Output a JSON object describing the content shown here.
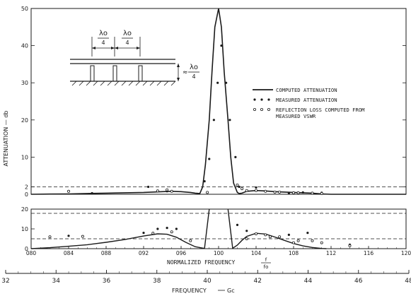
{
  "chart_data": [
    {
      "type": "line",
      "ylabel": "ATTENUATION — db",
      "ylim": [
        0,
        50
      ],
      "xlim": [
        0.8,
        1.2
      ],
      "yticks": [
        {
          "value": 0,
          "label": "0"
        },
        {
          "value": 2,
          "label": "2"
        },
        {
          "value": 10,
          "label": "10"
        },
        {
          "value": 20,
          "label": "20"
        },
        {
          "value": 30,
          "label": "30"
        },
        {
          "value": 40,
          "label": "40"
        },
        {
          "value": 50,
          "label": "50"
        }
      ],
      "reference_line_y": 2,
      "legend": {
        "placement": "right",
        "entries": [
          "COMPUTED ATTENUATION",
          "MEASURED ATTENUATION",
          "REFLECTION LOSS COMPUTED FROM MEASURED VSWR"
        ]
      },
      "inset": {
        "labels": [
          "λo/4",
          "λo/4",
          "≈ λo/4"
        ],
        "lambda": "λo",
        "four": "4",
        "approx": "≈"
      },
      "series": [
        {
          "name": "COMPUTED ATTENUATION",
          "style": "line",
          "x": [
            0.8,
            0.82,
            0.84,
            0.86,
            0.88,
            0.9,
            0.92,
            0.94,
            0.95,
            0.96,
            0.97,
            0.975,
            0.98,
            0.983,
            0.986,
            0.99,
            0.993,
            0.996,
            1.0,
            1.003,
            1.006,
            1.01,
            1.013,
            1.016,
            1.02,
            1.022,
            1.025,
            1.03,
            1.04,
            1.05,
            1.06,
            1.08,
            1.1,
            1.11,
            1.12,
            1.14,
            1.16,
            1.18,
            1.2
          ],
          "y": [
            0,
            0.05,
            0.1,
            0.2,
            0.3,
            0.4,
            0.5,
            0.7,
            0.8,
            0.7,
            0.5,
            0.3,
            0.2,
            2.0,
            8.0,
            20.0,
            33.0,
            45.0,
            50.0,
            45.0,
            33.0,
            20.0,
            10.0,
            3.0,
            0.5,
            0.2,
            0.3,
            0.8,
            1.0,
            0.9,
            0.7,
            0.5,
            0.3,
            0.1,
            0,
            0,
            0,
            0,
            0
          ]
        },
        {
          "name": "MEASURED ATTENUATION",
          "style": "points",
          "x": [
            0.865,
            0.925,
            0.945,
            0.985,
            0.99,
            0.995,
            0.999,
            1.003,
            1.008,
            1.012,
            1.018,
            1.022,
            1.04,
            1.075,
            1.09,
            1.11
          ],
          "y": [
            0.3,
            2.0,
            0.8,
            3.5,
            9.5,
            20.0,
            30.0,
            40.0,
            30.0,
            20.0,
            10.0,
            2.0,
            1.8,
            0.3,
            0.5,
            0.4
          ]
        },
        {
          "name": "REFLECTION LOSS COMPUTED FROM MEASURED VSWR",
          "style": "open-points",
          "x": [
            0.84,
            0.935,
            0.945,
            0.95,
            0.988,
            1.02,
            1.025,
            1.03,
            1.04,
            1.05,
            1.06,
            1.065,
            1.08,
            1.085,
            1.1,
            1.11
          ],
          "y": [
            0.8,
            0.9,
            1.2,
            0.8,
            0.5,
            2.5,
            1.5,
            1.0,
            1.0,
            0.8,
            0.6,
            0.6,
            0.4,
            0.4,
            0.3,
            0.2
          ]
        }
      ]
    },
    {
      "type": "line",
      "ylim": [
        0,
        20
      ],
      "xlim": [
        0.8,
        1.2
      ],
      "xlabel": "NORMALIZED FREQUENCY",
      "xlabel_fraction": {
        "num": "f",
        "den": "fo"
      },
      "yticks": [
        {
          "value": 0,
          "label": "0"
        },
        {
          "value": 10,
          "label": "10"
        },
        {
          "value": 20,
          "label": "20"
        }
      ],
      "xticks": [
        {
          "value": 0.8,
          "label": "080"
        },
        {
          "value": 0.84,
          "label": "084"
        },
        {
          "value": 0.88,
          "label": "088"
        },
        {
          "value": 0.92,
          "label": "092"
        },
        {
          "value": 0.96,
          "label": "096"
        },
        {
          "value": 1.0,
          "label": "100"
        },
        {
          "value": 1.04,
          "label": "104"
        },
        {
          "value": 1.08,
          "label": "108"
        },
        {
          "value": 1.12,
          "label": "112"
        },
        {
          "value": 1.16,
          "label": "116"
        },
        {
          "value": 1.2,
          "label": "120"
        }
      ],
      "reference_line_y": 5,
      "series": [
        {
          "name": "COMPUTED ATTENUATION",
          "style": "line",
          "segments": [
            {
              "x": [
                0.8,
                0.82,
                0.84,
                0.86,
                0.88,
                0.9,
                0.92,
                0.935,
                0.945,
                0.955,
                0.965,
                0.975,
                0.985,
                0.99
              ],
              "y": [
                0,
                0.5,
                1.2,
                2.0,
                3.2,
                4.6,
                6.4,
                7.5,
                7.3,
                5.8,
                3.2,
                1.0,
                0.1,
                20
              ]
            },
            {
              "x": [
                1.01,
                1.015,
                1.02,
                1.025,
                1.03,
                1.04,
                1.05,
                1.06,
                1.07,
                1.08,
                1.09,
                1.1,
                1.11,
                1.115
              ],
              "y": [
                20,
                0.2,
                1.8,
                4.2,
                6.2,
                7.8,
                7.4,
                5.9,
                4.2,
                2.6,
                1.4,
                0.6,
                0.1,
                0
              ]
            }
          ]
        },
        {
          "name": "MEASURED ATTENUATION",
          "style": "points",
          "x": [
            0.84,
            0.92,
            0.935,
            0.945,
            0.955,
            1.02,
            1.03,
            1.075,
            1.095,
            1.14
          ],
          "y": [
            6.5,
            8.0,
            10.0,
            10.5,
            10.0,
            12.0,
            9.0,
            7.0,
            8.0,
            2.0
          ]
        },
        {
          "name": "REFLECTION LOSS COMPUTED FROM MEASURED VSWR",
          "style": "open-points",
          "x": [
            0.82,
            0.855,
            0.93,
            0.95,
            0.97,
            1.03,
            1.04,
            1.05,
            1.055,
            1.065,
            1.08,
            1.085,
            1.1,
            1.11,
            1.14
          ],
          "y": [
            6.0,
            6.2,
            7.8,
            8.5,
            4.0,
            5.0,
            7.5,
            7.0,
            6.0,
            6.0,
            3.0,
            4.0,
            4.0,
            3.0,
            1.5
          ]
        }
      ]
    }
  ],
  "frequency_axis": {
    "xlabel": "FREQUENCY",
    "unit": "Gc",
    "range": [
      32,
      48
    ],
    "ticks": [
      "32",
      "34",
      "36",
      "38",
      "40",
      "42",
      "44",
      "46",
      "48"
    ]
  }
}
